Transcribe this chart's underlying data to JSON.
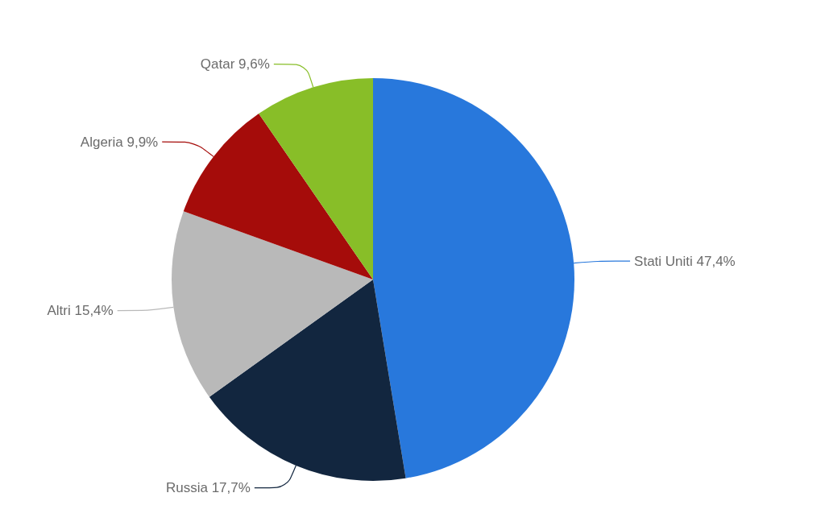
{
  "chart_data": {
    "type": "pie",
    "categories": [
      "Stati Uniti",
      "Russia",
      "Altri",
      "Algeria",
      "Qatar"
    ],
    "values": [
      47.4,
      17.7,
      15.4,
      9.9,
      9.6
    ],
    "value_labels": [
      "47,4%",
      "17,7%",
      "15,4%",
      "9,9%",
      "9,6%"
    ],
    "colors": [
      "#2878dc",
      "#12263f",
      "#b9b9b9",
      "#a50c0a",
      "#88be28"
    ]
  }
}
